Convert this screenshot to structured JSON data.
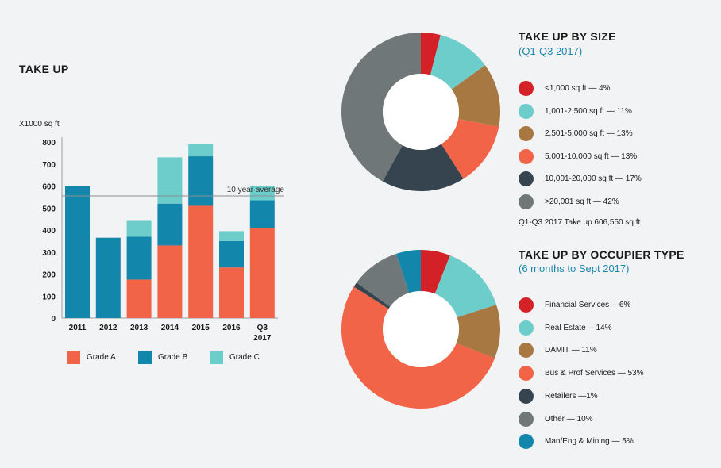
{
  "colors": {
    "gradeA": "#f26447",
    "gradeB": "#1387ab",
    "gradeC": "#6ccdcb"
  },
  "chart_data": [
    {
      "type": "bar",
      "stacked": true,
      "title": "TAKE UP",
      "ylabel": "X1000 sq ft",
      "ylim": [
        0,
        800
      ],
      "yticks": [
        0,
        100,
        200,
        300,
        400,
        500,
        600,
        700,
        800
      ],
      "categories": [
        "2011",
        "2012",
        "2013",
        "2014",
        "2015",
        "2016",
        "Q3 2017"
      ],
      "series": [
        {
          "name": "Grade A",
          "values": [
            0,
            0,
            175,
            330,
            510,
            230,
            410
          ]
        },
        {
          "name": "Grade B",
          "values": [
            600,
            365,
            195,
            190,
            225,
            120,
            125
          ]
        },
        {
          "name": "Grade C",
          "values": [
            0,
            0,
            75,
            210,
            55,
            45,
            65
          ]
        }
      ],
      "reference_line": {
        "label": "10 year average",
        "value": 555
      }
    },
    {
      "type": "pie",
      "donut": true,
      "title": "TAKE UP BY SIZE",
      "subtitle": "(Q1-Q3 2017)",
      "note": "Q1-Q3 2017 Take up 606,550 sq ft",
      "slices": [
        {
          "label": "<1,000 sq ft — 4%",
          "value": 4,
          "color": "#d42027"
        },
        {
          "label": "1,001-2,500 sq ft — 11%",
          "value": 11,
          "color": "#6ccdcb"
        },
        {
          "label": "2,501-5,000 sq ft — 13%",
          "value": 13,
          "color": "#a87843"
        },
        {
          "label": "5,001-10,000 sq ft — 13%",
          "value": 13,
          "color": "#f26447"
        },
        {
          "label": "10,001-20,000 sq ft — 17%",
          "value": 17,
          "color": "#364450"
        },
        {
          "label": ">20,001 sq ft — 42%",
          "value": 42,
          "color": "#6f7778"
        }
      ]
    },
    {
      "type": "pie",
      "donut": true,
      "title": "TAKE UP BY OCCUPIER TYPE",
      "subtitle": "(6 months to Sept 2017)",
      "slices": [
        {
          "label": "Financial Services —6%",
          "value": 6,
          "color": "#d42027"
        },
        {
          "label": "Real Estate —14%",
          "value": 14,
          "color": "#6ccdcb"
        },
        {
          "label": "DAMIT — 11%",
          "value": 11,
          "color": "#a87843"
        },
        {
          "label": "Bus & Prof Services — 53%",
          "value": 53,
          "color": "#f26447"
        },
        {
          "label": "Retailers —1%",
          "value": 1,
          "color": "#364450"
        },
        {
          "label": "Other — 10%",
          "value": 10,
          "color": "#6f7778"
        },
        {
          "label": "Man/Eng & Mining — 5%",
          "value": 5,
          "color": "#1387ab"
        }
      ]
    }
  ]
}
